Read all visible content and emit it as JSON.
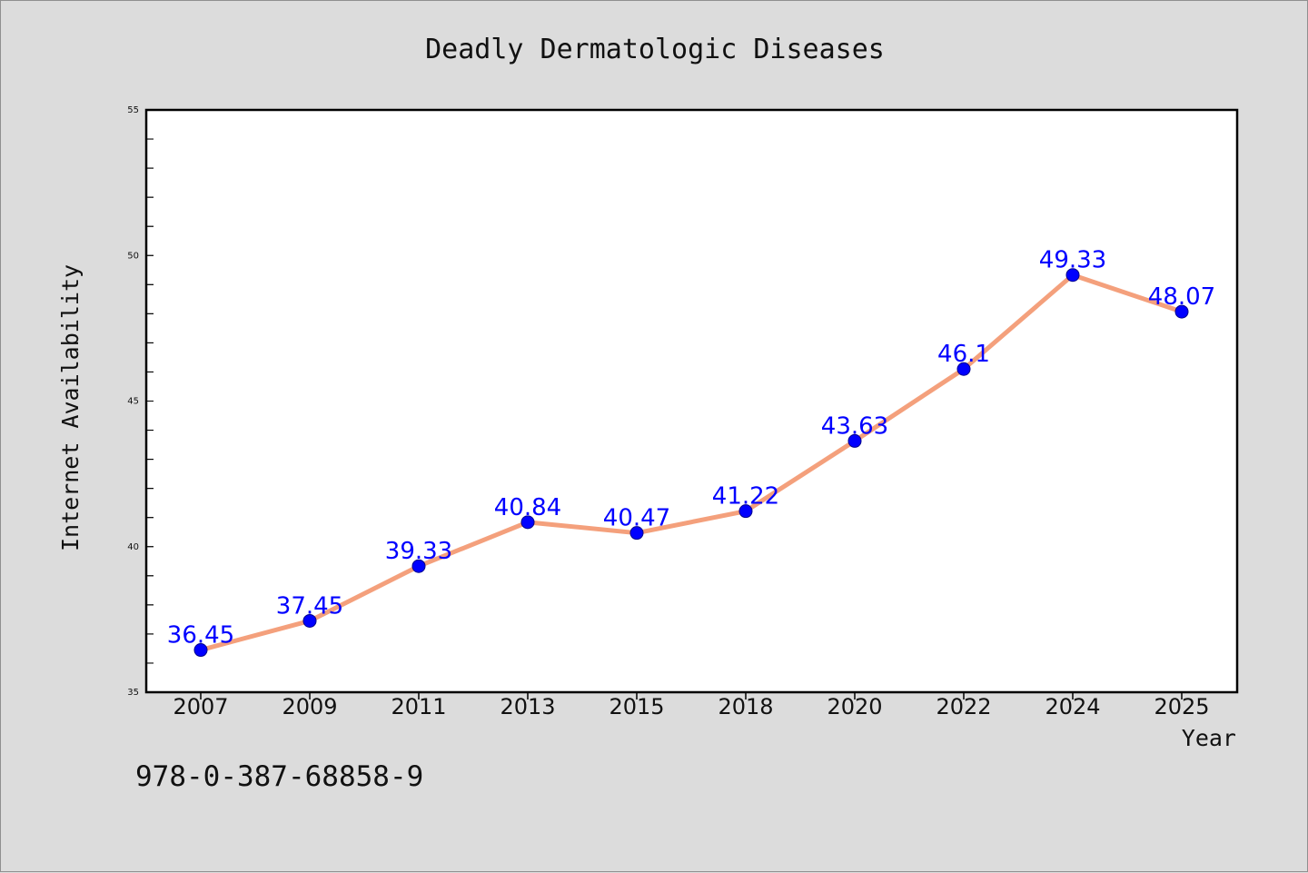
{
  "colors": {
    "background": "#dcdcdc",
    "plot_background": "#ffffff",
    "line": "#f4a07c",
    "marker": "#0000ff",
    "data_label": "#0000ff"
  },
  "chart_data": {
    "type": "line",
    "title": "Deadly Dermatologic Diseases",
    "xlabel": "Year",
    "ylabel": "Internet Availability",
    "categories": [
      "2007",
      "2009",
      "2011",
      "2013",
      "2015",
      "2018",
      "2020",
      "2022",
      "2024",
      "2025"
    ],
    "series": [
      {
        "values": [
          36.45,
          37.45,
          39.33,
          40.84,
          40.47,
          41.22,
          43.63,
          46.1,
          49.33,
          48.07
        ],
        "labels": [
          "36.45",
          "37.45",
          "39.33",
          "40.84",
          "40.47",
          "41.22",
          "43.63",
          "46.1",
          "49.33",
          "48.07"
        ]
      }
    ],
    "ylim": [
      35,
      55
    ],
    "yticks": [
      35,
      40,
      45,
      50,
      55
    ],
    "grid": false,
    "legend": "none"
  },
  "footnote": "978-0-387-68858-9"
}
